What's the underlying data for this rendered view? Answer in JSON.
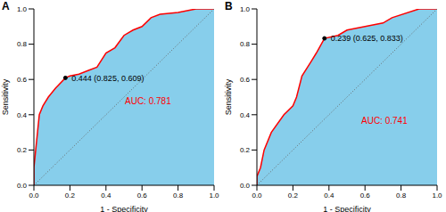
{
  "chart_data": [
    {
      "type": "area",
      "title": "A",
      "xlabel": "1 - Specificity",
      "ylabel": "Sensitivity",
      "color": "#ff0000",
      "x": [
        0,
        0,
        0.01,
        0.02,
        0.03,
        0.05,
        0.08,
        0.12,
        0.175,
        0.2,
        0.25,
        0.3,
        0.35,
        0.4,
        0.45,
        0.5,
        0.55,
        0.6,
        0.65,
        0.7,
        0.8,
        0.9,
        1
      ],
      "values": [
        0,
        0.1,
        0.2,
        0.3,
        0.4,
        0.45,
        0.5,
        0.55,
        0.609,
        0.62,
        0.63,
        0.65,
        0.67,
        0.75,
        0.78,
        0.85,
        0.88,
        0.9,
        0.95,
        0.97,
        0.98,
        1,
        1
      ],
      "xlim": [
        0,
        1
      ],
      "ylim": [
        0,
        1
      ],
      "xticks": [
        {
          "value": 0,
          "label": "0.0"
        },
        {
          "value": 0.2,
          "label": "0.2"
        },
        {
          "value": 0.4,
          "label": "0.4"
        },
        {
          "value": 0.6,
          "label": "0.6"
        },
        {
          "value": 0.8,
          "label": "0.8"
        },
        {
          "value": 1,
          "label": "1.0"
        }
      ],
      "yticks": [
        {
          "value": 0,
          "label": "0.0"
        },
        {
          "value": 0.2,
          "label": "0.2"
        },
        {
          "value": 0.4,
          "label": "0.4"
        },
        {
          "value": 0.6,
          "label": "0.6"
        },
        {
          "value": 0.8,
          "label": "0.8"
        },
        {
          "value": 1,
          "label": "1.0"
        }
      ],
      "threshold": {
        "x": 0.175,
        "y": 0.609,
        "label": "0.444 (0.825, 0.609)"
      },
      "annotations": [
        "AUC: 0.781"
      ]
    },
    {
      "type": "area",
      "title": "B",
      "xlabel": "1 - Specificity",
      "ylabel": "Sensitivity",
      "color": "#ff0000",
      "x": [
        0,
        0,
        0.02,
        0.04,
        0.08,
        0.15,
        0.2,
        0.22,
        0.25,
        0.3,
        0.33,
        0.375,
        0.45,
        0.5,
        0.6,
        0.7,
        0.75,
        0.9,
        1
      ],
      "values": [
        0,
        0.05,
        0.1,
        0.2,
        0.3,
        0.4,
        0.45,
        0.5,
        0.62,
        0.7,
        0.75,
        0.833,
        0.85,
        0.88,
        0.9,
        0.92,
        0.95,
        1,
        1
      ],
      "xlim": [
        0,
        1
      ],
      "ylim": [
        0,
        1
      ],
      "xticks": [
        {
          "value": 0,
          "label": "0.0"
        },
        {
          "value": 0.2,
          "label": "0.2"
        },
        {
          "value": 0.4,
          "label": "0.4"
        },
        {
          "value": 0.6,
          "label": "0.6"
        },
        {
          "value": 0.8,
          "label": "0.8"
        },
        {
          "value": 1,
          "label": "1.0"
        }
      ],
      "yticks": [
        {
          "value": 0,
          "label": "0.0"
        },
        {
          "value": 0.2,
          "label": "0.2"
        },
        {
          "value": 0.4,
          "label": "0.4"
        },
        {
          "value": 0.6,
          "label": "0.6"
        },
        {
          "value": 0.8,
          "label": "0.8"
        },
        {
          "value": 1,
          "label": "1.0"
        }
      ],
      "threshold": {
        "x": 0.375,
        "y": 0.833,
        "label": "0.239 (0.625, 0.833)"
      },
      "annotations": [
        "AUC: 0.741"
      ]
    }
  ]
}
